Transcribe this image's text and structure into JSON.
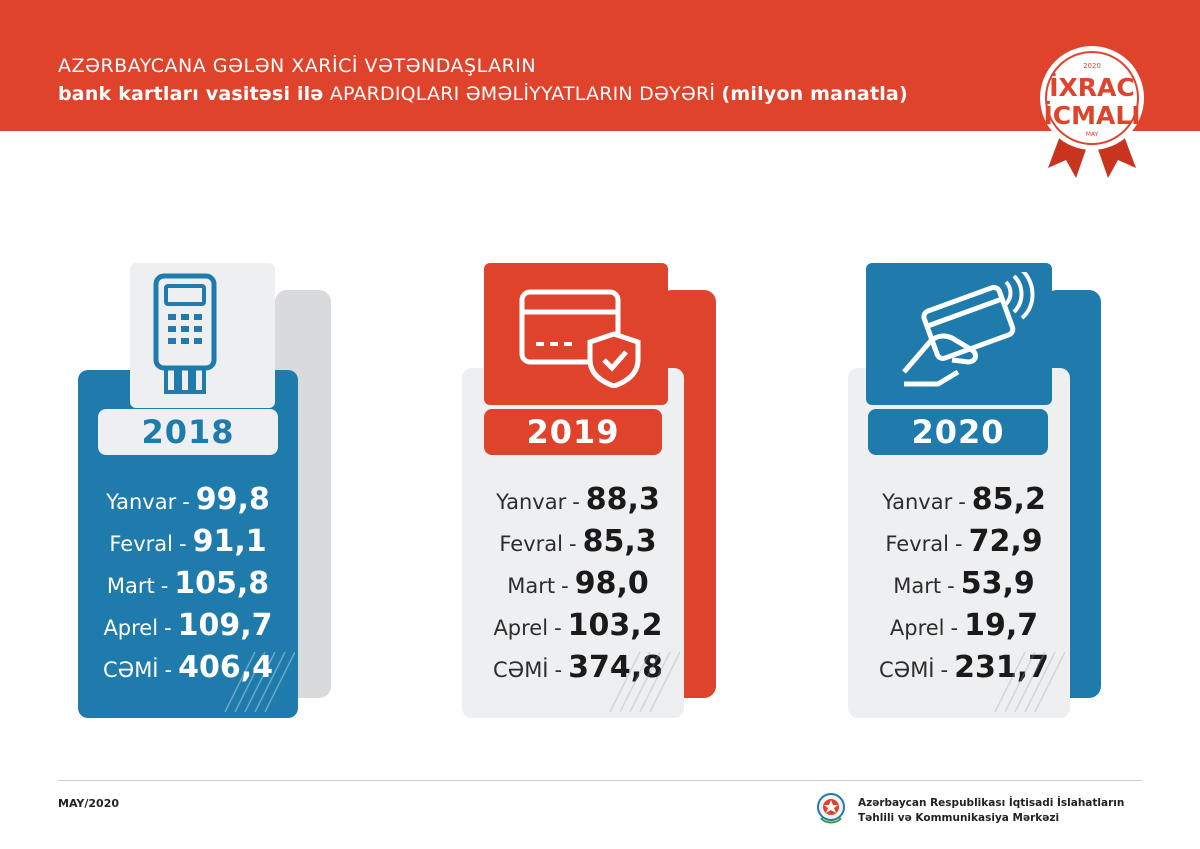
{
  "header": {
    "title_line1": "AZƏRBAYCANA GƏLƏN XARİCİ VƏTƏNDAŞLARIN",
    "title_line2_bold_a": "bank kartları vasitəsi ilə",
    "title_line2_regular": "APARDIQLARI ƏMƏLİYYATLARIN DƏYƏRİ",
    "title_line2_bold_b": "(milyon manatla)"
  },
  "badge": {
    "year": "2020",
    "line1": "İXRAC",
    "line2": "İCMALI",
    "month": "MAY"
  },
  "colors": {
    "red": "#e0432b",
    "blue": "#1e7bab",
    "grey": "#d9dadc",
    "light": "#eeeff1",
    "text": "#2d2d2d"
  },
  "cards": [
    {
      "year": "2018",
      "icon": "pos-terminal-icon",
      "rows": [
        {
          "label": "Yanvar",
          "sep": "-",
          "value": "99,8"
        },
        {
          "label": "Fevral",
          "sep": "-",
          "value": "91,1"
        },
        {
          "label": "Mart",
          "sep": "-",
          "value": "105,8"
        },
        {
          "label": "Aprel",
          "sep": "-",
          "value": "109,7"
        },
        {
          "label": "CƏMİ",
          "sep": "-",
          "value": "406,4"
        }
      ]
    },
    {
      "year": "2019",
      "icon": "secure-card-icon",
      "rows": [
        {
          "label": "Yanvar",
          "sep": "-",
          "value": "88,3"
        },
        {
          "label": "Fevral",
          "sep": "-",
          "value": "85,3"
        },
        {
          "label": "Mart",
          "sep": "-",
          "value": "98,0"
        },
        {
          "label": "Aprel",
          "sep": "-",
          "value": "103,2"
        },
        {
          "label": "CƏMİ",
          "sep": "-",
          "value": "374,8"
        }
      ]
    },
    {
      "year": "2020",
      "icon": "contactless-payment-icon",
      "rows": [
        {
          "label": "Yanvar",
          "sep": "-",
          "value": "85,2"
        },
        {
          "label": "Fevral",
          "sep": "-",
          "value": "72,9"
        },
        {
          "label": "Mart",
          "sep": "-",
          "value": "53,9"
        },
        {
          "label": "Aprel",
          "sep": "-",
          "value": "19,7"
        },
        {
          "label": "CƏMİ",
          "sep": "-",
          "value": "231,7"
        }
      ]
    }
  ],
  "footer": {
    "date": "MAY/2020",
    "org_line1": "Azərbaycan Respublikası İqtisadi İslahatların",
    "org_line2": "Təhlili və Kommunikasiya Mərkəzi"
  }
}
